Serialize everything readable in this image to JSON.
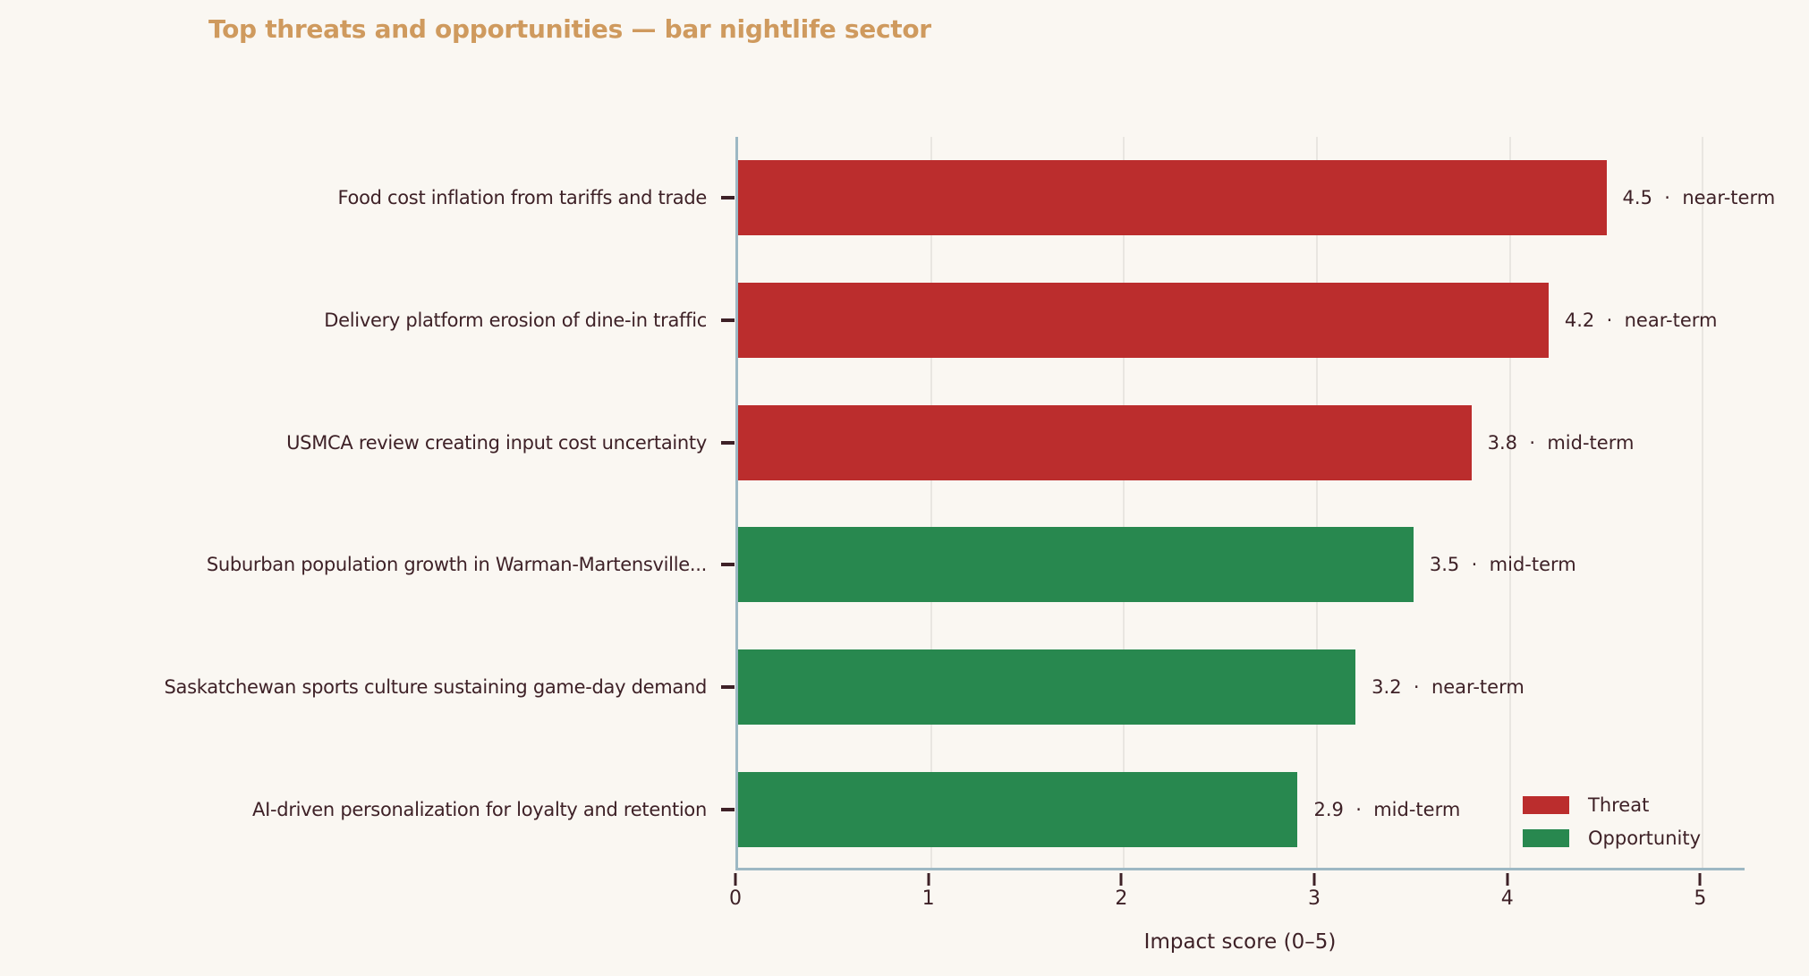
{
  "title": "Top threats and opportunities — bar nightlife sector",
  "colors": {
    "background": "#faf7f2",
    "title": "#cf9a5e",
    "text": "#3e2127",
    "spine": "#9db8c4",
    "grid": "#e9e6e1",
    "threat": "#bb2d2d",
    "opportunity": "#28884f"
  },
  "chart_data": {
    "type": "bar",
    "orientation": "horizontal",
    "title": "Top threats and opportunities — bar nightlife sector",
    "xlabel": "Impact score (0–5)",
    "ylabel": "",
    "xlim": [
      0,
      5.23
    ],
    "xticks": [
      0,
      1,
      2,
      3,
      4,
      5
    ],
    "grid": true,
    "categories": [
      "Food cost inflation from tariffs and trade",
      "Delivery platform erosion of dine-in traffic",
      "USMCA review creating input cost uncertainty",
      "Suburban population growth in Warman-Martensville...",
      "Saskatchewan sports culture sustaining game-day demand",
      "AI-driven personalization for loyalty and retention"
    ],
    "values": [
      4.5,
      4.2,
      3.8,
      3.5,
      3.2,
      2.9
    ],
    "items": [
      {
        "label": "Food cost inflation from tariffs and trade",
        "value": 4.5,
        "horizon": "near-term",
        "kind": "Threat"
      },
      {
        "label": "Delivery platform erosion of dine-in traffic",
        "value": 4.2,
        "horizon": "near-term",
        "kind": "Threat"
      },
      {
        "label": "USMCA review creating input cost uncertainty",
        "value": 3.8,
        "horizon": "mid-term",
        "kind": "Threat"
      },
      {
        "label": "Suburban population growth in Warman-Martensville...",
        "value": 3.5,
        "horizon": "mid-term",
        "kind": "Opportunity"
      },
      {
        "label": "Saskatchewan sports culture sustaining game-day demand",
        "value": 3.2,
        "horizon": "near-term",
        "kind": "Opportunity"
      },
      {
        "label": "AI-driven personalization for loyalty and retention",
        "value": 2.9,
        "horizon": "mid-term",
        "kind": "Opportunity"
      }
    ],
    "kind_colors": {
      "Threat": "#bb2d2d",
      "Opportunity": "#28884f"
    },
    "legend": {
      "position": "lower right",
      "entries": [
        {
          "label": "Threat",
          "kind": "Threat"
        },
        {
          "label": "Opportunity",
          "kind": "Opportunity"
        }
      ]
    }
  }
}
